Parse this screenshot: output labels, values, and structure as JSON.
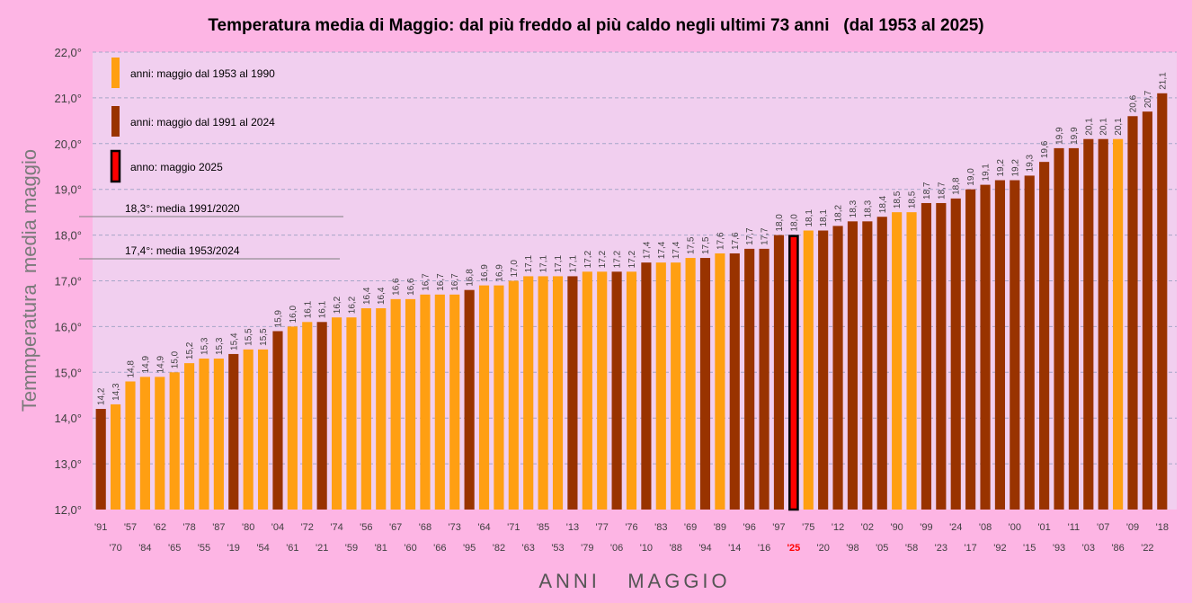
{
  "chart_data": {
    "type": "bar",
    "title": "Temperatura media di Maggio: dal più freddo al più caldo negli ultimi 73 anni   (dal 1953 al 2025)",
    "ylabel": "Temmperatura  media maggio",
    "xlabel": "ANNI   MAGGIO",
    "ylim": [
      12,
      22
    ],
    "yticks": [
      "12,0°",
      "13,0°",
      "14,0°",
      "15,0°",
      "16,0°",
      "17,0°",
      "18,0°",
      "19,0°",
      "20,0°",
      "21,0°",
      "22,0°"
    ],
    "grid": true,
    "colors": {
      "group_1953_1990": "#ff9f12",
      "group_1991_2024": "#993300",
      "group_2025": "#ff0000",
      "highlight_border": "#000000",
      "plot_bg": "#f1cfef",
      "page_bg": "#fdb5e4"
    },
    "legend": {
      "placement": "top-left",
      "entries": [
        {
          "label": "anni:  maggio  dal 1953 al 1990",
          "group": "a"
        },
        {
          "label": "anni:  maggio  dal 1991 al 2024",
          "group": "b"
        },
        {
          "label": "anno: maggio 2025",
          "group": "c"
        }
      ]
    },
    "reference_lines": [
      {
        "value": 18.3,
        "label": "18,3°: media 1991/2020"
      },
      {
        "value": 17.4,
        "label": "17,4°: media 1953/2024"
      }
    ],
    "categories": [
      "'91",
      "'70",
      "'57",
      "'84",
      "'62",
      "'65",
      "'78",
      "'55",
      "'87",
      "'19",
      "'80",
      "'54",
      "'04",
      "'61",
      "'72",
      "'21",
      "'74",
      "'59",
      "'56",
      "'81",
      "'67",
      "'60",
      "'68",
      "'66",
      "'73",
      "'95",
      "'64",
      "'82",
      "'71",
      "'63",
      "'85",
      "'53",
      "'13",
      "'79",
      "'77",
      "'06",
      "'76",
      "'10",
      "'83",
      "'88",
      "'69",
      "'94",
      "'89",
      "'14",
      "'96",
      "'16",
      "'97",
      "'25",
      "'75",
      "'20",
      "'12",
      "'98",
      "'02",
      "'05",
      "'90",
      "'58",
      "'99",
      "'23",
      "'24",
      "'17",
      "'08",
      "'92",
      "'00",
      "'15",
      "'01",
      "'93",
      "'11",
      "'03",
      "'07",
      "'86",
      "'09",
      "'22",
      "'18"
    ],
    "values": [
      14.2,
      14.3,
      14.8,
      14.9,
      14.9,
      15.0,
      15.2,
      15.3,
      15.3,
      15.4,
      15.5,
      15.5,
      15.9,
      16.0,
      16.1,
      16.1,
      16.2,
      16.2,
      16.4,
      16.4,
      16.6,
      16.6,
      16.7,
      16.7,
      16.7,
      16.8,
      16.9,
      16.9,
      17.0,
      17.1,
      17.1,
      17.1,
      17.1,
      17.2,
      17.2,
      17.2,
      17.2,
      17.4,
      17.4,
      17.4,
      17.5,
      17.5,
      17.6,
      17.6,
      17.7,
      17.7,
      18.0,
      18.0,
      18.1,
      18.1,
      18.2,
      18.3,
      18.3,
      18.4,
      18.5,
      18.5,
      18.7,
      18.7,
      18.8,
      19.0,
      19.1,
      19.2,
      19.2,
      19.3,
      19.6,
      19.9,
      19.9,
      20.1,
      20.1,
      20.1,
      20.6,
      20.7,
      21.1
    ],
    "value_labels": [
      "14,2",
      "14,3",
      "14,8",
      "14,9",
      "14,9",
      "15,0",
      "15,2",
      "15,3",
      "15,3",
      "15,4",
      "15,5",
      "15,5",
      "15,9",
      "16,0",
      "16,1",
      "16,1",
      "16,2",
      "16,2",
      "16,4",
      "16,4",
      "16,6",
      "16,6",
      "16,7",
      "16,7",
      "16,7",
      "16,8",
      "16,9",
      "16,9",
      "17,0",
      "17,1",
      "17,1",
      "17,1",
      "17,1",
      "17,2",
      "17,2",
      "17,2",
      "17,2",
      "17,4",
      "17,4",
      "17,4",
      "17,5",
      "17,5",
      "17,6",
      "17,6",
      "17,7",
      "17,7",
      "18,0",
      "18,0",
      "18,1",
      "18,1",
      "18,2",
      "18,3",
      "18,3",
      "18,4",
      "18,5",
      "18,5",
      "18,7",
      "18,7",
      "18,8",
      "19,0",
      "19,1",
      "19,2",
      "19,2",
      "19,3",
      "19,6",
      "19,9",
      "19,9",
      "20,1",
      "20,1",
      "20,1",
      "20,6",
      "20,7",
      "21,1"
    ],
    "groups": [
      "b",
      "a",
      "a",
      "a",
      "a",
      "a",
      "a",
      "a",
      "a",
      "b",
      "a",
      "a",
      "b",
      "a",
      "a",
      "b",
      "a",
      "a",
      "a",
      "a",
      "a",
      "a",
      "a",
      "a",
      "a",
      "b",
      "a",
      "a",
      "a",
      "a",
      "a",
      "a",
      "b",
      "a",
      "a",
      "b",
      "a",
      "b",
      "a",
      "a",
      "a",
      "b",
      "a",
      "b",
      "b",
      "b",
      "b",
      "c",
      "a",
      "b",
      "b",
      "b",
      "b",
      "b",
      "a",
      "a",
      "b",
      "b",
      "b",
      "b",
      "b",
      "b",
      "b",
      "b",
      "b",
      "b",
      "b",
      "b",
      "b",
      "a",
      "b",
      "b",
      "b"
    ]
  }
}
